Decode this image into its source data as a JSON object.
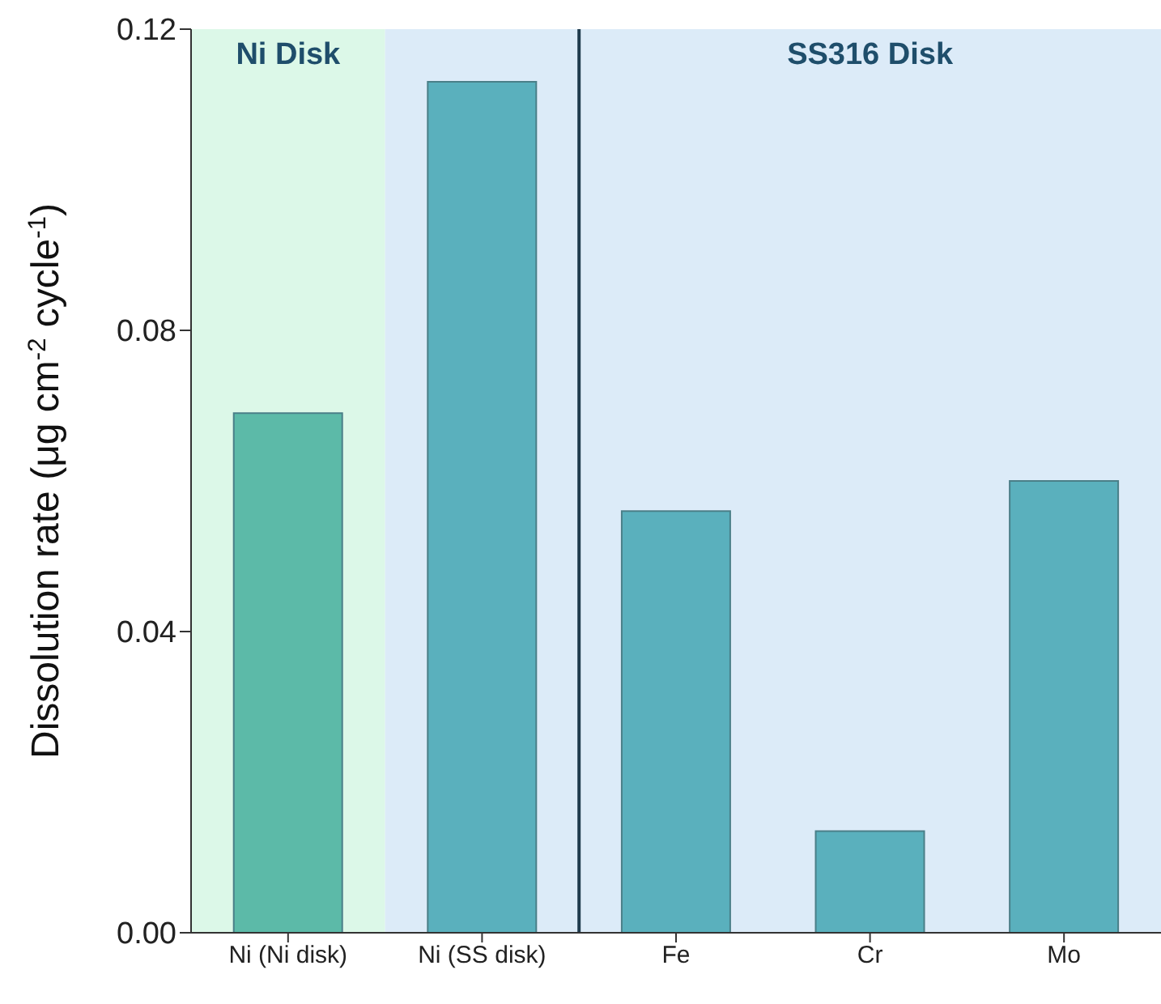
{
  "chart_data": {
    "type": "bar",
    "ylabel": "Dissolution rate (μg cm$^{-2}$ cycle$^{-1}$)",
    "categories": [
      "Ni (Ni disk)",
      "Ni (SS disk)",
      "Fe",
      "Cr",
      "Mo"
    ],
    "values": [
      0.069,
      0.113,
      0.056,
      0.0135,
      0.06
    ],
    "colors": [
      "#5cbaa8",
      "#5ab0bd",
      "#5ab0bd",
      "#5ab0bd",
      "#5ab0bd"
    ],
    "ylim": [
      0,
      0.12
    ],
    "yticks": [
      {
        "value": 0,
        "label": "0.00"
      },
      {
        "value": 0.04,
        "label": "0.04"
      },
      {
        "value": 0.08,
        "label": "0.08"
      },
      {
        "value": 0.12,
        "label": "0.12"
      }
    ],
    "bands": [
      {
        "axis": "x",
        "from": "Ni (Ni disk)",
        "to": "Ni (Ni disk)",
        "label": "Ni Disk",
        "color": "#dcf8e8"
      },
      {
        "axis": "x",
        "from": "Ni (SS disk)",
        "to": "Ni (SS disk)",
        "label": null,
        "color": "#dcebf8"
      },
      {
        "axis": "x",
        "from": "Fe",
        "to": "Mo",
        "label": "SS316 Disk",
        "color": "#dcebf8"
      }
    ],
    "grid": false
  }
}
